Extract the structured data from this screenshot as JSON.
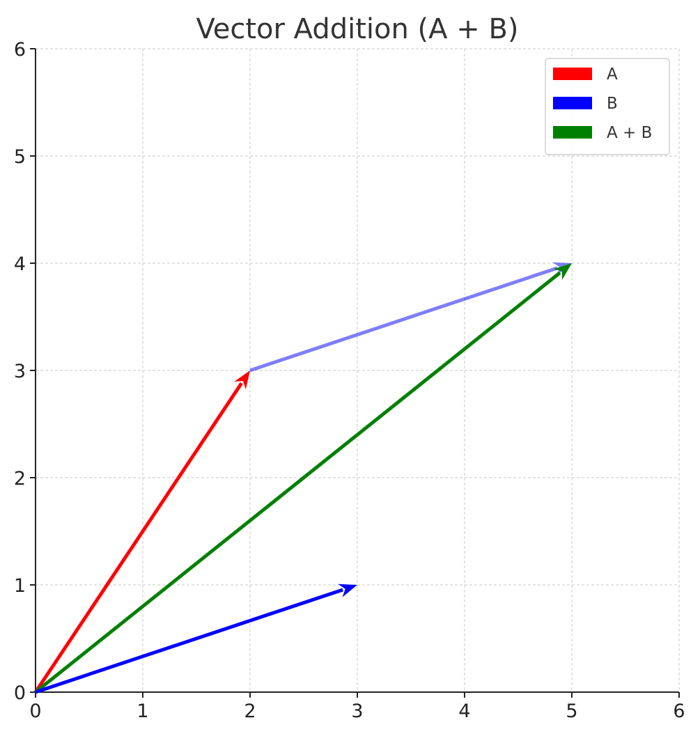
{
  "chart_data": {
    "type": "line",
    "title": "Vector Addition (A + B)",
    "xlabel": "",
    "ylabel": "",
    "xlim": [
      0,
      6
    ],
    "ylim": [
      0,
      6
    ],
    "x_ticks": [
      0,
      1,
      2,
      3,
      4,
      5,
      6
    ],
    "y_ticks": [
      0,
      1,
      2,
      3,
      4,
      5,
      6
    ],
    "grid": true,
    "legend_position": "top-right",
    "series": [
      {
        "name": "A",
        "color": "#ff0000",
        "start": [
          0,
          0
        ],
        "end": [
          2,
          3
        ]
      },
      {
        "name": "B",
        "color": "#0000ff",
        "start": [
          0,
          0
        ],
        "end": [
          3,
          1
        ]
      },
      {
        "name": "A + B",
        "color": "#008000",
        "start": [
          0,
          0
        ],
        "end": [
          5,
          4
        ]
      }
    ],
    "annotations": [
      {
        "of_series": "B",
        "color": "#0000ff",
        "opacity": 0.5,
        "start": [
          2,
          3
        ],
        "end": [
          5,
          4
        ]
      }
    ]
  }
}
